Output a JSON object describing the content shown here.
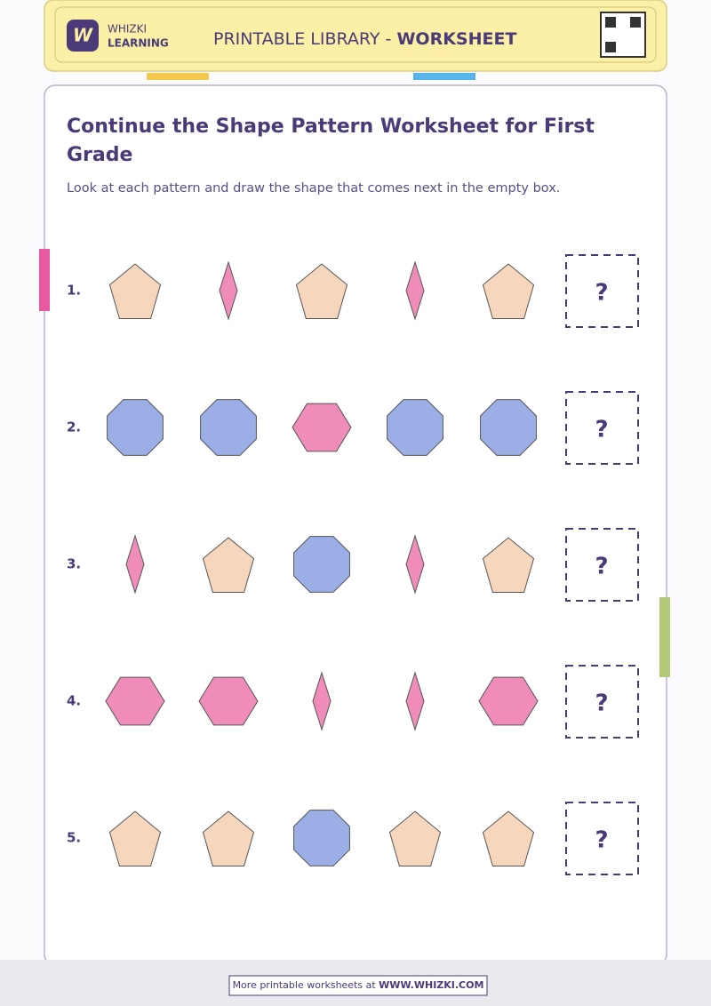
{
  "header": {
    "brand_line1": "WHIZKI",
    "brand_line2": "LEARNING",
    "library": "PRINTABLE LIBRARY - ",
    "library_bold": "WORKSHEET"
  },
  "title": "Continue the Shape Pattern Worksheet for First Grade",
  "instructions": "Look at each pattern and draw the shape that comes next in the empty box.",
  "rows": [
    {
      "number": "1.",
      "answer": "?"
    },
    {
      "number": "2.",
      "answer": "?"
    },
    {
      "number": "3.",
      "answer": "?"
    },
    {
      "number": "4.",
      "answer": "?"
    },
    {
      "number": "5.",
      "answer": "?"
    }
  ],
  "footer": {
    "text": "More printable worksheets at ",
    "link": "WWW.WHIZKI.COM"
  }
}
